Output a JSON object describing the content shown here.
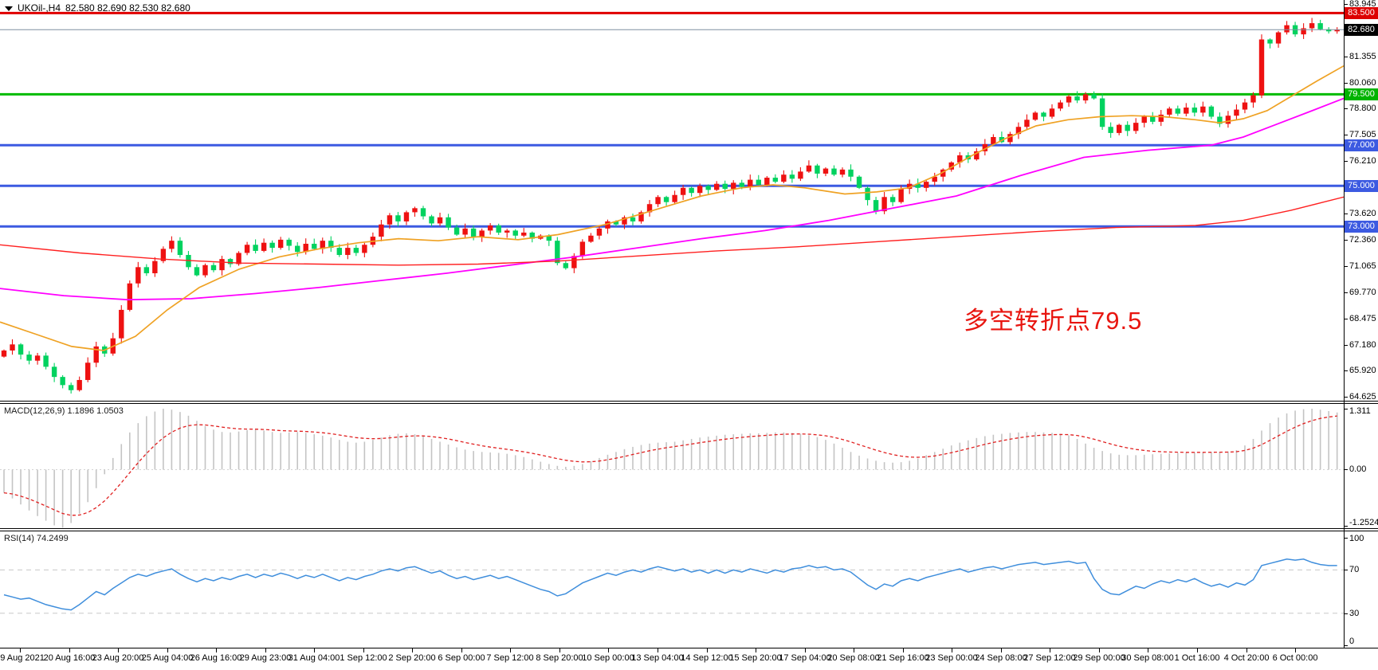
{
  "header": {
    "symbol_timeframe": "UKOil-,H4",
    "ohlc_values": "82.580 82.690 82.530 82.680"
  },
  "annotation": {
    "text": "多空转折点79.5"
  },
  "panels": {
    "macd_label": "MACD(12,26,9) 1.1896 1.0503",
    "rsi_label": "RSI(14) 74.2499"
  },
  "price_axis": {
    "ticks": [
      {
        "label": "83.945",
        "price": 83.945
      },
      {
        "label": "81.355",
        "price": 81.355
      },
      {
        "label": "80.060",
        "price": 80.06
      },
      {
        "label": "78.800",
        "price": 78.8
      },
      {
        "label": "77.505",
        "price": 77.505
      },
      {
        "label": "76.210",
        "price": 76.21
      },
      {
        "label": "73.620",
        "price": 73.62
      },
      {
        "label": "72.360",
        "price": 72.36
      },
      {
        "label": "71.065",
        "price": 71.065
      },
      {
        "label": "69.770",
        "price": 69.77
      },
      {
        "label": "68.475",
        "price": 68.475
      },
      {
        "label": "67.180",
        "price": 67.18
      },
      {
        "label": "65.920",
        "price": 65.92
      },
      {
        "label": "64.625",
        "price": 64.625
      }
    ],
    "badges": [
      {
        "label": "83.500",
        "price": 83.5,
        "bg": "#dd0000"
      },
      {
        "label": "82.680",
        "price": 82.68,
        "bg": "#000000"
      },
      {
        "label": "79.500",
        "price": 79.5,
        "bg": "#00b300"
      },
      {
        "label": "77.000",
        "price": 77.0,
        "bg": "#3c5ae1"
      },
      {
        "label": "75.000",
        "price": 75.0,
        "bg": "#3c5ae1"
      },
      {
        "label": "73.000",
        "price": 73.0,
        "bg": "#3c5ae1"
      }
    ]
  },
  "macd_axis": [
    {
      "label": "1.311",
      "value": 1.311
    },
    {
      "label": "0.00",
      "value": 0
    },
    {
      "label": "-1.2524",
      "value": -1.2524
    }
  ],
  "rsi_axis": [
    {
      "label": "100",
      "value": 100
    },
    {
      "label": "70",
      "value": 70
    },
    {
      "label": "30",
      "value": 30
    },
    {
      "label": "0",
      "value": 0
    }
  ],
  "time_axis": [
    "19 Aug 2021",
    "20 Aug 16:00",
    "23 Aug 20:00",
    "25 Aug 04:00",
    "26 Aug 16:00",
    "29 Aug 23:00",
    "31 Aug 04:00",
    "1 Sep 12:00",
    "2 Sep 20:00",
    "6 Sep 00:00",
    "7 Sep 12:00",
    "8 Sep 20:00",
    "10 Sep 00:00",
    "13 Sep 04:00",
    "14 Sep 12:00",
    "15 Sep 20:00",
    "17 Sep 04:00",
    "20 Sep 08:00",
    "21 Sep 16:00",
    "23 Sep 00:00",
    "24 Sep 08:00",
    "27 Sep 12:00",
    "29 Sep 00:00",
    "30 Sep 08:00",
    "1 Oct 16:00",
    "4 Oct 20:00",
    "6 Oct 00:00"
  ],
  "colors": {
    "bull": "#ee1111",
    "bear": "#00d25f",
    "ma_fast": "#efa224",
    "ma_mid": "#ff00ff",
    "ma_slow": "#ff2020",
    "line_red": "#e00000",
    "line_green": "#00bb00",
    "line_blue": "#3c5ae1",
    "current": "#7f8fa0",
    "macd_hist": "#c4c4c4",
    "macd_signal": "#e02020",
    "rsi": "#3f8edc",
    "rsi_levels": "#c8c8c8",
    "annotation": "#e8150f"
  },
  "chart_data": {
    "type": "candlestick",
    "instrument": "UKOil-",
    "timeframe": "H4",
    "price_range_visible": [
      64.43,
      84.14
    ],
    "open_first": 66.6,
    "closes": [
      66.9,
      67.2,
      66.7,
      66.4,
      66.65,
      66.1,
      65.6,
      65.2,
      64.95,
      65.45,
      66.3,
      67.1,
      66.75,
      67.5,
      68.9,
      70.2,
      71.0,
      70.7,
      71.3,
      71.9,
      72.3,
      71.6,
      71.0,
      70.6,
      71.1,
      70.85,
      71.4,
      71.15,
      71.7,
      72.1,
      71.8,
      72.2,
      71.95,
      72.35,
      72.05,
      71.75,
      72.15,
      71.9,
      72.3,
      71.95,
      71.6,
      71.95,
      71.7,
      72.1,
      72.5,
      73.1,
      73.55,
      73.25,
      73.7,
      73.9,
      73.5,
      73.15,
      73.45,
      72.95,
      72.6,
      72.9,
      72.5,
      72.8,
      73.05,
      72.7,
      72.8,
      72.55,
      72.7,
      72.4,
      72.55,
      72.3,
      71.2,
      70.95,
      71.55,
      72.25,
      72.55,
      72.9,
      73.25,
      73.1,
      73.45,
      73.25,
      73.7,
      74.1,
      74.45,
      74.2,
      74.55,
      74.9,
      74.65,
      75.0,
      74.8,
      75.1,
      74.85,
      75.15,
      74.95,
      75.3,
      75.05,
      75.4,
      75.2,
      75.55,
      75.35,
      75.7,
      76.0,
      75.6,
      75.85,
      75.55,
      75.8,
      75.45,
      74.9,
      74.3,
      73.75,
      74.45,
      74.2,
      74.85,
      75.1,
      74.9,
      75.2,
      75.45,
      75.8,
      76.15,
      76.5,
      76.3,
      76.7,
      77.05,
      77.4,
      77.15,
      77.55,
      77.9,
      78.25,
      78.6,
      78.4,
      78.8,
      79.1,
      79.4,
      79.2,
      79.5,
      79.3,
      77.9,
      77.6,
      78.0,
      77.7,
      78.1,
      78.4,
      78.15,
      78.5,
      78.8,
      78.55,
      78.85,
      78.6,
      78.9,
      78.4,
      78.05,
      78.45,
      78.75,
      79.1,
      79.45,
      82.2,
      82.0,
      82.55,
      82.9,
      82.45,
      82.75,
      83.0,
      82.7,
      82.6,
      82.68
    ],
    "ma_fast_points": [
      [
        0,
        68.3
      ],
      [
        45,
        67.7
      ],
      [
        90,
        67.1
      ],
      [
        130,
        66.9
      ],
      [
        170,
        67.6
      ],
      [
        210,
        68.9
      ],
      [
        250,
        70.0
      ],
      [
        300,
        70.9
      ],
      [
        350,
        71.5
      ],
      [
        400,
        71.9
      ],
      [
        450,
        72.2
      ],
      [
        500,
        72.4
      ],
      [
        550,
        72.3
      ],
      [
        600,
        72.5
      ],
      [
        650,
        72.35
      ],
      [
        700,
        72.6
      ],
      [
        760,
        73.1
      ],
      [
        820,
        73.8
      ],
      [
        880,
        74.5
      ],
      [
        930,
        74.9
      ],
      [
        970,
        75.05
      ],
      [
        1010,
        74.9
      ],
      [
        1060,
        74.6
      ],
      [
        1100,
        74.7
      ],
      [
        1140,
        74.9
      ],
      [
        1180,
        75.6
      ],
      [
        1220,
        76.5
      ],
      [
        1260,
        77.3
      ],
      [
        1300,
        77.95
      ],
      [
        1340,
        78.25
      ],
      [
        1380,
        78.4
      ],
      [
        1420,
        78.45
      ],
      [
        1460,
        78.4
      ],
      [
        1500,
        78.25
      ],
      [
        1530,
        78.1
      ],
      [
        1560,
        78.3
      ],
      [
        1590,
        78.7
      ],
      [
        1620,
        79.4
      ],
      [
        1650,
        80.1
      ],
      [
        1686,
        80.9
      ]
    ],
    "ma_mid_points": [
      [
        0,
        69.95
      ],
      [
        80,
        69.6
      ],
      [
        160,
        69.4
      ],
      [
        240,
        69.45
      ],
      [
        320,
        69.7
      ],
      [
        400,
        70.0
      ],
      [
        480,
        70.35
      ],
      [
        560,
        70.7
      ],
      [
        640,
        71.1
      ],
      [
        720,
        71.5
      ],
      [
        800,
        71.95
      ],
      [
        880,
        72.4
      ],
      [
        960,
        72.8
      ],
      [
        1040,
        73.3
      ],
      [
        1120,
        73.9
      ],
      [
        1200,
        74.5
      ],
      [
        1280,
        75.5
      ],
      [
        1360,
        76.4
      ],
      [
        1440,
        76.75
      ],
      [
        1520,
        77.0
      ],
      [
        1560,
        77.4
      ],
      [
        1600,
        78.0
      ],
      [
        1640,
        78.6
      ],
      [
        1686,
        79.3
      ]
    ],
    "ma_slow_points": [
      [
        0,
        72.1
      ],
      [
        100,
        71.7
      ],
      [
        200,
        71.4
      ],
      [
        300,
        71.2
      ],
      [
        400,
        71.15
      ],
      [
        500,
        71.1
      ],
      [
        600,
        71.15
      ],
      [
        700,
        71.3
      ],
      [
        800,
        71.55
      ],
      [
        900,
        71.8
      ],
      [
        1000,
        72.0
      ],
      [
        1100,
        72.25
      ],
      [
        1200,
        72.5
      ],
      [
        1300,
        72.75
      ],
      [
        1400,
        72.95
      ],
      [
        1500,
        73.05
      ],
      [
        1560,
        73.3
      ],
      [
        1620,
        73.8
      ],
      [
        1686,
        74.45
      ]
    ],
    "hlines": [
      {
        "price": 83.5,
        "color_key": "line_red"
      },
      {
        "price": 79.5,
        "color_key": "line_green"
      },
      {
        "price": 77.0,
        "color_key": "line_blue"
      },
      {
        "price": 75.0,
        "color_key": "line_blue"
      },
      {
        "price": 73.0,
        "color_key": "line_blue"
      }
    ],
    "current_price": 82.68,
    "macd": {
      "params": "12,26,9",
      "value": 1.1896,
      "signal_value": 1.0503,
      "range_visible": [
        -1.261,
        1.414
      ],
      "histogram": [
        -0.5,
        -0.62,
        -0.75,
        -0.88,
        -1.0,
        -1.1,
        -1.2,
        -1.25,
        -1.15,
        -0.95,
        -0.7,
        -0.4,
        -0.1,
        0.25,
        0.55,
        0.8,
        1.0,
        1.15,
        1.25,
        1.31,
        1.29,
        1.24,
        1.16,
        1.05,
        0.94,
        0.86,
        0.81,
        0.8,
        0.82,
        0.85,
        0.86,
        0.84,
        0.81,
        0.79,
        0.8,
        0.81,
        0.79,
        0.76,
        0.73,
        0.69,
        0.64,
        0.6,
        0.58,
        0.6,
        0.64,
        0.69,
        0.74,
        0.77,
        0.78,
        0.76,
        0.72,
        0.66,
        0.6,
        0.54,
        0.48,
        0.43,
        0.4,
        0.38,
        0.37,
        0.36,
        0.34,
        0.31,
        0.27,
        0.22,
        0.17,
        0.12,
        0.08,
        0.06,
        0.08,
        0.12,
        0.18,
        0.25,
        0.32,
        0.38,
        0.44,
        0.49,
        0.53,
        0.56,
        0.58,
        0.59,
        0.6,
        0.63,
        0.66,
        0.69,
        0.71,
        0.73,
        0.75,
        0.76,
        0.77,
        0.78,
        0.78,
        0.79,
        0.8,
        0.8,
        0.79,
        0.77,
        0.74,
        0.7,
        0.64,
        0.56,
        0.47,
        0.38,
        0.3,
        0.24,
        0.19,
        0.16,
        0.15,
        0.16,
        0.19,
        0.24,
        0.31,
        0.38,
        0.45,
        0.52,
        0.58,
        0.63,
        0.68,
        0.72,
        0.75,
        0.77,
        0.79,
        0.8,
        0.81,
        0.81,
        0.8,
        0.79,
        0.77,
        0.74,
        0.66,
        0.56,
        0.47,
        0.4,
        0.35,
        0.32,
        0.31,
        0.31,
        0.32,
        0.33,
        0.34,
        0.35,
        0.36,
        0.36,
        0.37,
        0.37,
        0.38,
        0.38,
        0.39,
        0.42,
        0.52,
        0.66,
        0.84,
        1.0,
        1.12,
        1.21,
        1.27,
        1.3,
        1.31,
        1.29,
        1.26,
        1.23
      ]
    },
    "rsi": {
      "period": 14,
      "value": 74.2499,
      "levels": [
        70,
        30
      ],
      "range": [
        0,
        100
      ],
      "values": [
        47,
        45,
        43,
        44,
        41,
        38,
        36,
        34,
        33,
        38,
        44,
        50,
        47,
        53,
        58,
        63,
        66,
        64,
        67,
        69,
        71,
        66,
        62,
        59,
        62,
        60,
        63,
        61,
        64,
        66,
        63,
        66,
        64,
        67,
        65,
        62,
        65,
        63,
        66,
        63,
        60,
        63,
        61,
        64,
        66,
        69,
        71,
        69,
        72,
        73,
        70,
        67,
        69,
        65,
        62,
        64,
        61,
        63,
        65,
        62,
        64,
        61,
        58,
        55,
        52,
        50,
        46,
        48,
        53,
        58,
        61,
        64,
        67,
        65,
        68,
        70,
        68,
        71,
        73,
        71,
        69,
        71,
        68,
        70,
        67,
        70,
        67,
        70,
        68,
        71,
        69,
        67,
        70,
        68,
        71,
        72,
        74,
        72,
        73,
        70,
        71,
        68,
        62,
        56,
        52,
        57,
        55,
        60,
        62,
        60,
        63,
        65,
        67,
        69,
        71,
        68,
        70,
        72,
        73,
        71,
        73,
        75,
        76,
        77,
        75,
        76,
        77,
        78,
        76,
        77,
        62,
        52,
        48,
        47,
        51,
        55,
        53,
        57,
        60,
        58,
        61,
        59,
        62,
        58,
        55,
        57,
        54,
        58,
        56,
        61,
        74,
        76,
        78,
        80,
        79,
        80,
        77,
        75,
        74,
        74
      ]
    }
  }
}
